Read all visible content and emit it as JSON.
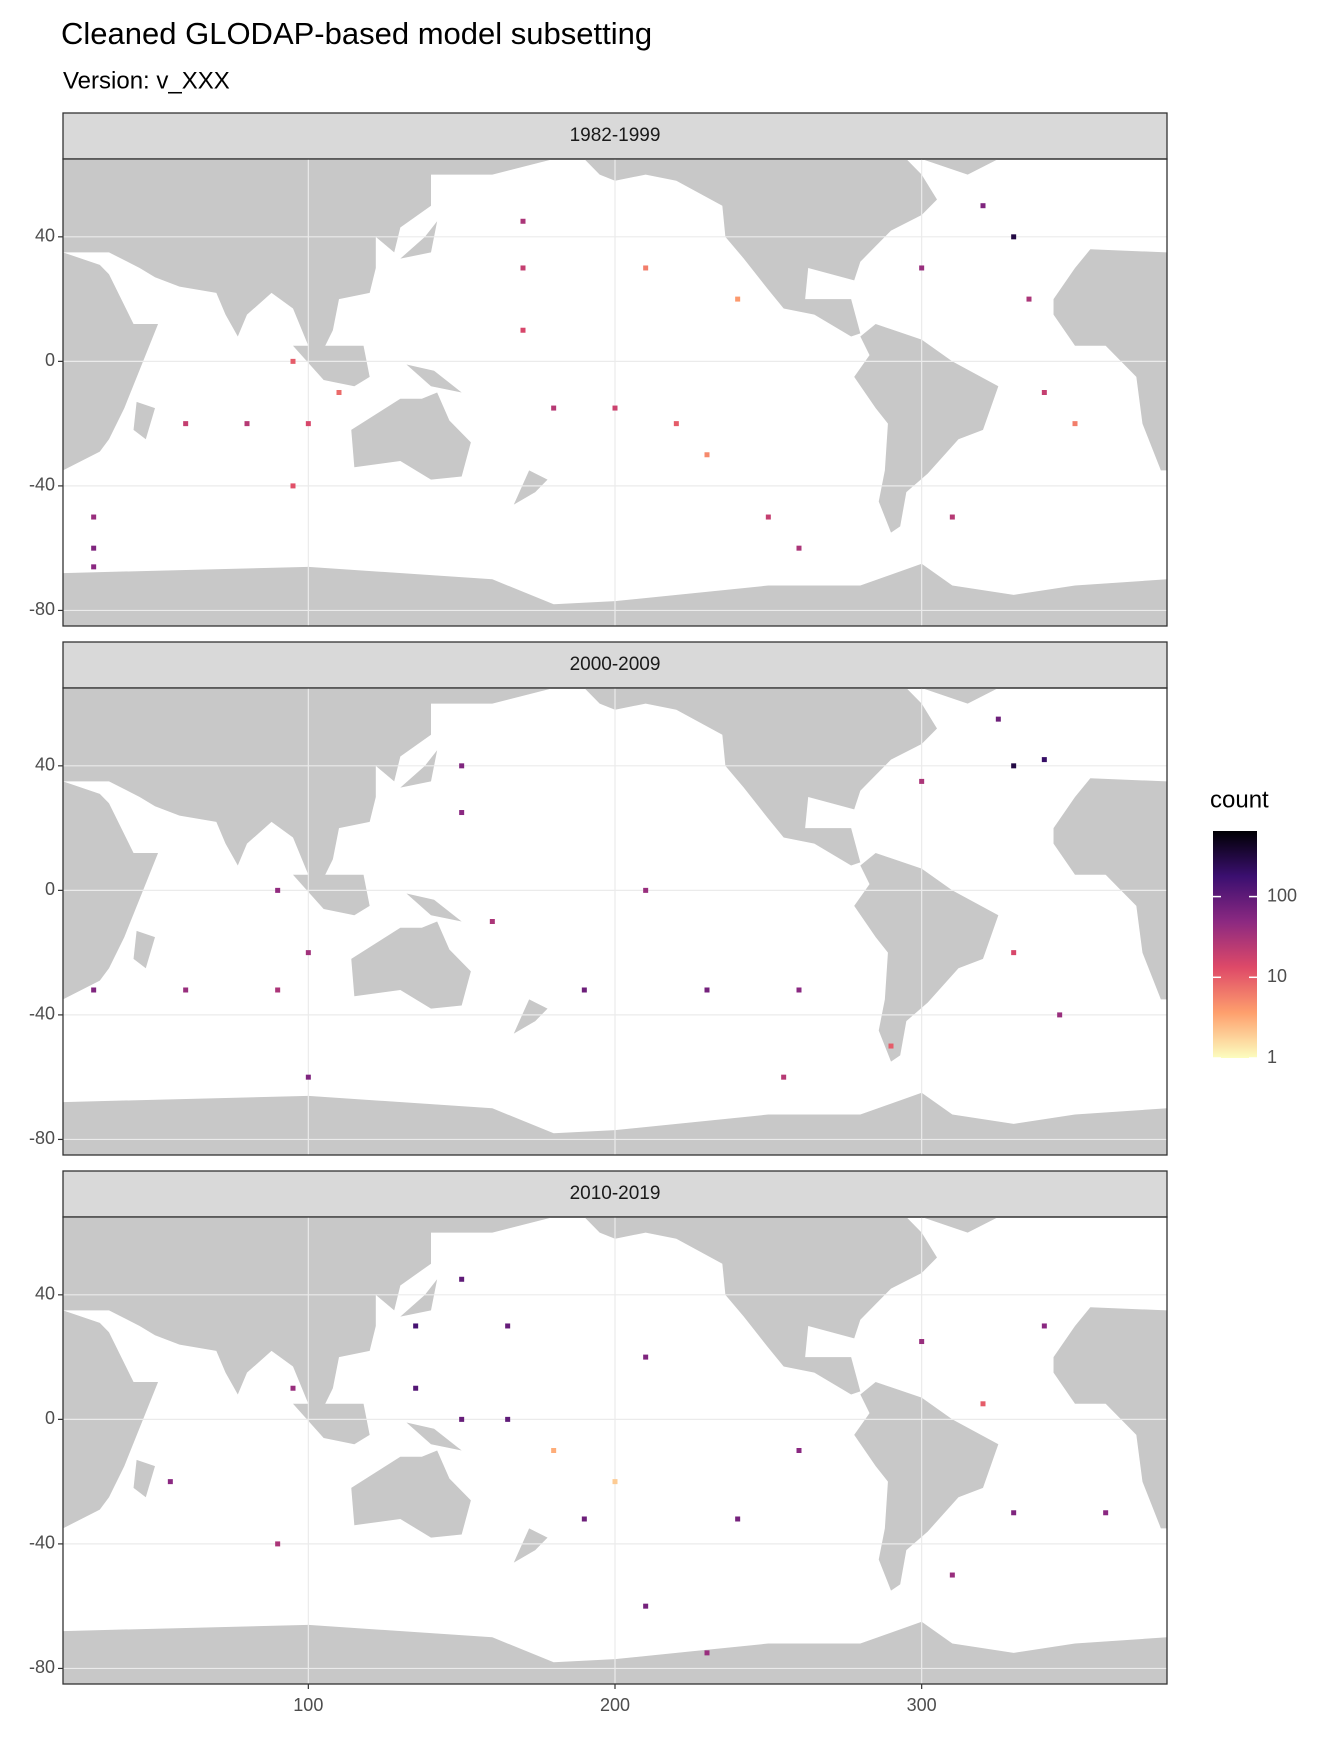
{
  "chart_data": {
    "type": "map",
    "title": "Cleaned GLODAP-based model subsetting",
    "subtitle": "Version: v_XXX",
    "xlim": [
      20,
      380
    ],
    "ylim": [
      -85,
      65
    ],
    "xticks": [
      100,
      200,
      300
    ],
    "yticks": [
      -80,
      -40,
      0,
      40
    ],
    "grid": true,
    "legend": {
      "title": "count",
      "position": "right",
      "log_scale": true,
      "lim": [
        1,
        650
      ],
      "ticks": [
        1,
        10,
        100
      ],
      "colors": [
        "#fcfdbf",
        "#fe9f6d",
        "#de4968",
        "#8c2981",
        "#3b0f70",
        "#000004"
      ]
    },
    "facets": [
      {
        "label": "1982-1999",
        "x": [
          30,
          30,
          30,
          60,
          80,
          100,
          110,
          95,
          95,
          170,
          170,
          170,
          180,
          200,
          220,
          230,
          250,
          260,
          210,
          240,
          300,
          320,
          330,
          335,
          340,
          350,
          310
        ],
        "y": [
          -50,
          -60,
          -66,
          -20,
          -20,
          -20,
          -10,
          0,
          -40,
          45,
          30,
          10,
          -15,
          -15,
          -20,
          -30,
          -50,
          -60,
          30,
          20,
          30,
          50,
          40,
          20,
          -10,
          -20,
          -50
        ],
        "values": [
          40,
          60,
          50,
          20,
          25,
          15,
          8,
          10,
          12,
          30,
          20,
          15,
          25,
          18,
          10,
          5,
          20,
          30,
          6,
          4,
          40,
          60,
          300,
          30,
          20,
          6,
          25
        ]
      },
      {
        "label": "2000-2009",
        "x": [
          30,
          60,
          90,
          100,
          90,
          150,
          150,
          160,
          190,
          230,
          260,
          210,
          255,
          290,
          330,
          330,
          325,
          340,
          345,
          300,
          100
        ],
        "y": [
          -32,
          -32,
          -32,
          -20,
          0,
          40,
          25,
          -10,
          -32,
          -32,
          -32,
          0,
          -60,
          -50,
          -20,
          40,
          55,
          42,
          -40,
          35,
          -60
        ],
        "values": [
          60,
          40,
          30,
          35,
          45,
          60,
          50,
          30,
          80,
          70,
          50,
          40,
          25,
          10,
          15,
          300,
          80,
          200,
          40,
          30,
          60
        ]
      },
      {
        "label": "2010-2019",
        "x": [
          135,
          135,
          150,
          165,
          165,
          150,
          190,
          240,
          210,
          210,
          260,
          95,
          90,
          55,
          300,
          340,
          330,
          360,
          310,
          320,
          230,
          180,
          200
        ],
        "y": [
          30,
          10,
          45,
          30,
          0,
          0,
          -32,
          -32,
          20,
          -60,
          -10,
          10,
          -40,
          -20,
          25,
          30,
          -30,
          -30,
          -50,
          5,
          -75,
          -10,
          -20
        ],
        "values": [
          150,
          120,
          100,
          90,
          100,
          90,
          80,
          70,
          60,
          70,
          50,
          40,
          30,
          50,
          40,
          50,
          60,
          50,
          40,
          10,
          40,
          3,
          2
        ]
      }
    ]
  }
}
